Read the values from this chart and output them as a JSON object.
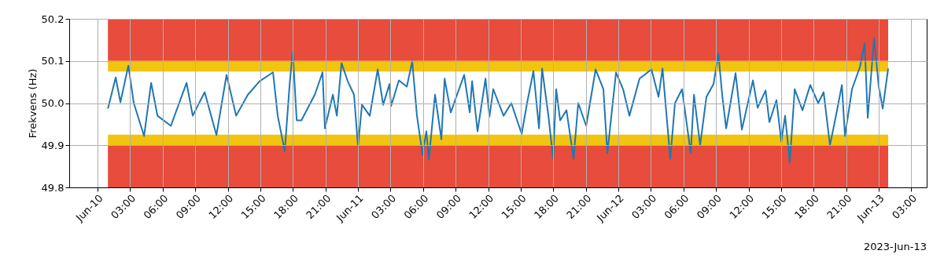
{
  "chart_data": {
    "type": "line",
    "ylabel": "Frekvens (Hz)",
    "annotations": [
      "2023-Jun-13"
    ],
    "xlim": [
      "2023-06-09T21:23",
      "2023-06-13T04:25"
    ],
    "ylim": [
      49.8,
      50.2
    ],
    "yticks": [
      {
        "value": 49.8,
        "label": "49.8"
      },
      {
        "value": 49.9,
        "label": "49.9"
      },
      {
        "value": 50.0,
        "label": "50.0"
      },
      {
        "value": 50.1,
        "label": "50.1"
      },
      {
        "value": 50.2,
        "label": "50.2"
      }
    ],
    "xticks": [
      {
        "value": "2023-06-10T00:00",
        "label": "Jun-10"
      },
      {
        "value": "2023-06-10T03:00",
        "label": "03:00"
      },
      {
        "value": "2023-06-10T06:00",
        "label": "06:00"
      },
      {
        "value": "2023-06-10T09:00",
        "label": "09:00"
      },
      {
        "value": "2023-06-10T12:00",
        "label": "12:00"
      },
      {
        "value": "2023-06-10T15:00",
        "label": "15:00"
      },
      {
        "value": "2023-06-10T18:00",
        "label": "18:00"
      },
      {
        "value": "2023-06-10T21:00",
        "label": "21:00"
      },
      {
        "value": "2023-06-11T00:00",
        "label": "Jun-11"
      },
      {
        "value": "2023-06-11T03:00",
        "label": "03:00"
      },
      {
        "value": "2023-06-11T06:00",
        "label": "06:00"
      },
      {
        "value": "2023-06-11T09:00",
        "label": "09:00"
      },
      {
        "value": "2023-06-11T12:00",
        "label": "12:00"
      },
      {
        "value": "2023-06-11T15:00",
        "label": "15:00"
      },
      {
        "value": "2023-06-11T18:00",
        "label": "18:00"
      },
      {
        "value": "2023-06-11T21:00",
        "label": "21:00"
      },
      {
        "value": "2023-06-12T00:00",
        "label": "Jun-12"
      },
      {
        "value": "2023-06-12T03:00",
        "label": "03:00"
      },
      {
        "value": "2023-06-12T06:00",
        "label": "06:00"
      },
      {
        "value": "2023-06-12T09:00",
        "label": "09:00"
      },
      {
        "value": "2023-06-12T12:00",
        "label": "12:00"
      },
      {
        "value": "2023-06-12T15:00",
        "label": "15:00"
      },
      {
        "value": "2023-06-12T18:00",
        "label": "18:00"
      },
      {
        "value": "2023-06-12T21:00",
        "label": "21:00"
      },
      {
        "value": "2023-06-13T00:00",
        "label": "Jun-13"
      },
      {
        "value": "2023-06-13T03:00",
        "label": "03:00"
      }
    ],
    "grid": true,
    "line_style": "solid",
    "marker": "none",
    "bands": [
      {
        "axis": "y",
        "from": 50.1,
        "to": 50.2,
        "color": "#e74c3c"
      },
      {
        "axis": "y",
        "from": 49.8,
        "to": 49.9,
        "color": "#e74c3c"
      },
      {
        "axis": "y",
        "from": 50.075,
        "to": 50.1,
        "color": "#f1c40f"
      },
      {
        "axis": "y",
        "from": 49.9,
        "to": 49.925,
        "color": "#f1c40f"
      }
    ],
    "x": [
      "2023-06-10T00:57",
      "2023-06-10T01:40",
      "2023-06-10T02:06",
      "2023-06-10T02:50",
      "2023-06-10T03:20",
      "2023-06-10T04:17",
      "2023-06-10T04:56",
      "2023-06-10T05:31",
      "2023-06-10T06:45",
      "2023-06-10T08:12",
      "2023-06-10T08:46",
      "2023-06-10T09:52",
      "2023-06-10T10:57",
      "2023-06-10T11:53",
      "2023-06-10T12:46",
      "2023-06-10T13:51",
      "2023-06-10T14:56",
      "2023-06-10T16:10",
      "2023-06-10T16:36",
      "2023-06-10T17:15",
      "2023-06-10T17:42",
      "2023-06-10T17:59",
      "2023-06-10T18:21",
      "2023-06-10T18:47",
      "2023-06-10T20:01",
      "2023-06-10T20:44",
      "2023-06-10T20:57",
      "2023-06-10T21:41",
      "2023-06-10T22:03",
      "2023-06-10T22:29",
      "2023-06-10T23:03",
      "2023-06-10T23:38",
      "2023-06-11T00:00",
      "2023-06-11T00:22",
      "2023-06-11T01:05",
      "2023-06-11T01:49",
      "2023-06-11T02:19",
      "2023-06-11T02:54",
      "2023-06-11T03:03",
      "2023-06-11T03:46",
      "2023-06-11T04:30",
      "2023-06-11T05:00",
      "2023-06-11T05:26",
      "2023-06-11T05:57",
      "2023-06-11T06:18",
      "2023-06-11T06:32",
      "2023-06-11T07:06",
      "2023-06-11T07:41",
      "2023-06-11T07:59",
      "2023-06-11T08:33",
      "2023-06-11T09:47",
      "2023-06-11T10:18",
      "2023-06-11T10:31",
      "2023-06-11T11:01",
      "2023-06-11T11:45",
      "2023-06-11T12:07",
      "2023-06-11T12:28",
      "2023-06-11T13:25",
      "2023-06-11T14:08",
      "2023-06-11T15:05",
      "2023-06-11T15:35",
      "2023-06-11T16:10",
      "2023-06-11T16:41",
      "2023-06-11T16:58",
      "2023-06-11T17:33",
      "2023-06-11T17:59",
      "2023-06-11T18:16",
      "2023-06-11T18:38",
      "2023-06-11T19:13",
      "2023-06-11T19:52",
      "2023-06-11T20:18",
      "2023-06-11T21:02",
      "2023-06-11T21:54",
      "2023-06-11T22:37",
      "2023-06-11T22:59",
      "2023-06-11T23:47",
      "2023-06-12T00:26",
      "2023-06-12T01:01",
      "2023-06-12T01:57",
      "2023-06-12T03:03",
      "2023-06-12T03:42",
      "2023-06-12T04:04",
      "2023-06-12T04:47",
      "2023-06-12T05:13",
      "2023-06-12T05:52",
      "2023-06-12T06:40",
      "2023-06-12T06:58",
      "2023-06-12T07:32",
      "2023-06-12T08:07",
      "2023-06-12T08:46",
      "2023-06-12T09:13",
      "2023-06-12T09:34",
      "2023-06-12T09:56",
      "2023-06-12T10:48",
      "2023-06-12T11:23",
      "2023-06-12T12:24",
      "2023-06-12T12:50",
      "2023-06-12T13:34",
      "2023-06-12T13:55",
      "2023-06-12T14:34",
      "2023-06-12T15:01",
      "2023-06-12T15:22",
      "2023-06-12T15:48",
      "2023-06-12T16:15",
      "2023-06-12T16:58",
      "2023-06-12T17:41",
      "2023-06-12T18:25",
      "2023-06-12T18:55",
      "2023-06-12T19:30",
      "2023-06-12T20:01",
      "2023-06-12T20:36",
      "2023-06-12T20:53",
      "2023-06-12T21:32",
      "2023-06-12T22:16",
      "2023-06-12T22:42",
      "2023-06-12T22:59",
      "2023-06-12T23:34",
      "2023-06-13T00:00",
      "2023-06-13T00:22",
      "2023-06-13T00:52"
    ],
    "series": [
      {
        "color": "#1f77b4",
        "values": [
          49.987,
          50.061,
          50.002,
          50.089,
          50.0,
          49.922,
          50.048,
          49.97,
          49.946,
          50.048,
          49.97,
          50.026,
          49.924,
          50.067,
          49.97,
          50.02,
          50.052,
          50.073,
          49.97,
          49.886,
          50.045,
          50.123,
          49.959,
          49.959,
          50.02,
          50.073,
          49.94,
          50.02,
          49.97,
          50.095,
          50.052,
          50.02,
          49.896,
          49.996,
          49.97,
          50.08,
          49.996,
          50.045,
          49.993,
          50.054,
          50.039,
          50.099,
          49.97,
          49.877,
          49.933,
          49.866,
          50.02,
          49.914,
          50.058,
          49.978,
          50.067,
          49.978,
          50.052,
          49.933,
          50.058,
          49.968,
          50.033,
          49.97,
          50.0,
          49.927,
          50.0,
          50.076,
          49.94,
          50.082,
          49.97,
          49.868,
          50.033,
          49.959,
          49.983,
          49.868,
          50.0,
          49.946,
          50.08,
          50.033,
          49.881,
          50.073,
          50.033,
          49.97,
          50.058,
          50.08,
          50.015,
          50.082,
          49.868,
          50.0,
          50.033,
          49.881,
          50.02,
          49.9,
          50.015,
          50.045,
          50.117,
          50.02,
          49.94,
          50.071,
          49.937,
          50.054,
          49.989,
          50.03,
          49.955,
          50.007,
          49.909,
          49.97,
          49.859,
          50.033,
          49.983,
          50.043,
          50.0,
          50.026,
          49.9,
          49.965,
          50.043,
          49.922,
          50.033,
          50.086,
          50.141,
          49.965,
          50.154,
          50.039,
          49.987,
          50.082
        ]
      }
    ]
  }
}
